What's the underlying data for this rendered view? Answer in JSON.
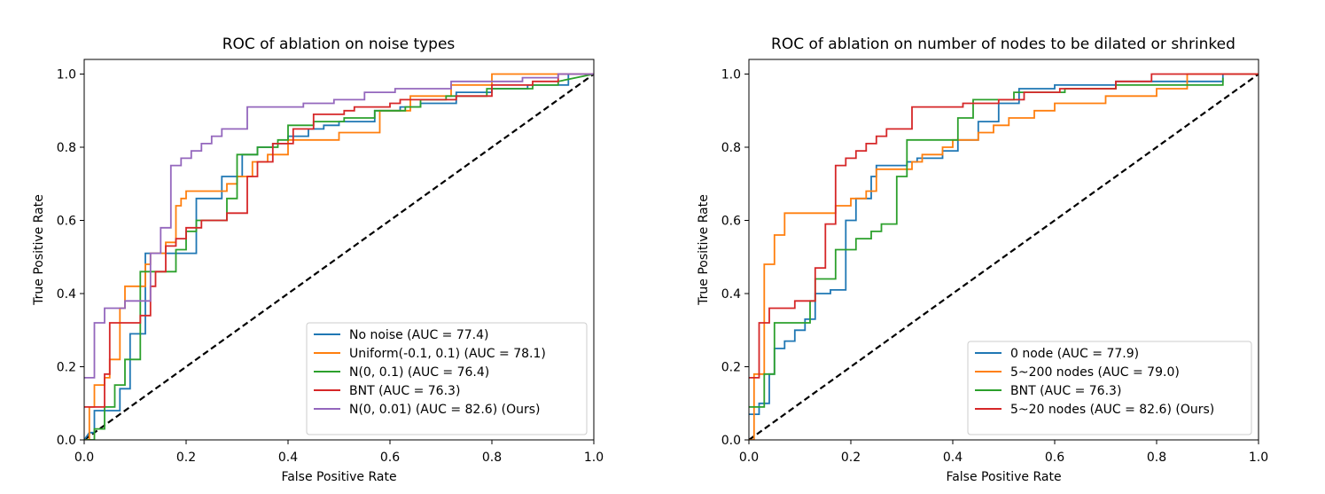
{
  "chart_data": [
    {
      "type": "line",
      "title": "ROC of ablation on noise types",
      "xlabel": "False Positive Rate",
      "ylabel": "True Positive Rate",
      "xlim": [
        0,
        1
      ],
      "ylim": [
        0,
        1.04
      ],
      "xticks": [
        "0.0",
        "0.2",
        "0.4",
        "0.6",
        "0.8",
        "1.0"
      ],
      "yticks": [
        "0.0",
        "0.2",
        "0.4",
        "0.6",
        "0.8",
        "1.0"
      ],
      "legend_position": "lower-right",
      "diagonal": {
        "style": "dashed",
        "color": "#000000",
        "x": [
          0,
          1
        ],
        "y": [
          0,
          1
        ]
      },
      "series": [
        {
          "name": "No noise (AUC = 77.4)",
          "color": "#1f77b4",
          "x": [
            0,
            0.01,
            0.02,
            0.02,
            0.07,
            0.07,
            0.09,
            0.09,
            0.12,
            0.12,
            0.15,
            0.15,
            0.18,
            0.18,
            0.22,
            0.22,
            0.27,
            0.27,
            0.31,
            0.31,
            0.34,
            0.34,
            0.37,
            0.37,
            0.4,
            0.4,
            0.44,
            0.44,
            0.47,
            0.47,
            0.5,
            0.5,
            0.57,
            0.57,
            0.62,
            0.62,
            0.66,
            0.66,
            0.73,
            0.73,
            0.8,
            0.8,
            0.87,
            0.87,
            0.93,
            0.93,
            0.95,
            0.95,
            1.0
          ],
          "y": [
            0,
            0.02,
            0.02,
            0.08,
            0.08,
            0.14,
            0.14,
            0.29,
            0.29,
            0.51,
            0.51,
            0.51,
            0.51,
            0.51,
            0.51,
            0.66,
            0.66,
            0.72,
            0.72,
            0.78,
            0.78,
            0.8,
            0.8,
            0.81,
            0.81,
            0.83,
            0.83,
            0.85,
            0.85,
            0.86,
            0.86,
            0.87,
            0.87,
            0.9,
            0.9,
            0.91,
            0.91,
            0.92,
            0.92,
            0.95,
            0.95,
            0.96,
            0.96,
            0.97,
            0.97,
            0.97,
            0.97,
            1.0,
            1.0
          ]
        },
        {
          "name": "Uniform(-0.1, 0.1) (AUC = 78.1)",
          "color": "#ff7f0e",
          "x": [
            0,
            0.01,
            0.01,
            0.02,
            0.02,
            0.04,
            0.04,
            0.05,
            0.05,
            0.07,
            0.07,
            0.08,
            0.08,
            0.12,
            0.12,
            0.13,
            0.13,
            0.16,
            0.16,
            0.18,
            0.18,
            0.19,
            0.19,
            0.2,
            0.2,
            0.28,
            0.28,
            0.3,
            0.3,
            0.33,
            0.33,
            0.36,
            0.36,
            0.4,
            0.4,
            0.44,
            0.44,
            0.5,
            0.5,
            0.53,
            0.53,
            0.58,
            0.58,
            0.64,
            0.64,
            0.72,
            0.72,
            0.8,
            0.8,
            1.0
          ],
          "y": [
            0,
            0,
            0.09,
            0.09,
            0.15,
            0.15,
            0.17,
            0.17,
            0.22,
            0.22,
            0.36,
            0.36,
            0.42,
            0.42,
            0.48,
            0.48,
            0.51,
            0.51,
            0.54,
            0.54,
            0.64,
            0.64,
            0.66,
            0.66,
            0.68,
            0.68,
            0.7,
            0.7,
            0.72,
            0.72,
            0.76,
            0.76,
            0.78,
            0.78,
            0.82,
            0.82,
            0.82,
            0.82,
            0.84,
            0.84,
            0.84,
            0.84,
            0.9,
            0.9,
            0.94,
            0.94,
            0.97,
            0.97,
            1.0,
            1.0
          ]
        },
        {
          "name": "N(0, 0.1) (AUC = 76.4)",
          "color": "#2ca02c",
          "x": [
            0,
            0.02,
            0.02,
            0.04,
            0.04,
            0.06,
            0.06,
            0.08,
            0.08,
            0.11,
            0.11,
            0.18,
            0.18,
            0.2,
            0.2,
            0.22,
            0.22,
            0.28,
            0.28,
            0.3,
            0.3,
            0.34,
            0.34,
            0.38,
            0.38,
            0.4,
            0.4,
            0.45,
            0.45,
            0.51,
            0.51,
            0.57,
            0.57,
            0.63,
            0.63,
            0.66,
            0.66,
            0.71,
            0.71,
            0.79,
            0.79,
            0.88,
            0.88,
            0.93,
            0.93,
            1.0
          ],
          "y": [
            0,
            0,
            0.03,
            0.03,
            0.09,
            0.09,
            0.15,
            0.15,
            0.22,
            0.22,
            0.46,
            0.46,
            0.52,
            0.52,
            0.57,
            0.57,
            0.6,
            0.6,
            0.66,
            0.66,
            0.78,
            0.78,
            0.8,
            0.8,
            0.82,
            0.82,
            0.86,
            0.86,
            0.87,
            0.87,
            0.88,
            0.88,
            0.9,
            0.9,
            0.91,
            0.91,
            0.93,
            0.93,
            0.94,
            0.94,
            0.96,
            0.96,
            0.97,
            0.97,
            0.98,
            1.0
          ]
        },
        {
          "name": "BNT (AUC = 76.3)",
          "color": "#d62728",
          "x": [
            0,
            0.02,
            0.02,
            0.04,
            0.04,
            0.05,
            0.05,
            0.09,
            0.09,
            0.11,
            0.11,
            0.13,
            0.13,
            0.14,
            0.14,
            0.16,
            0.16,
            0.18,
            0.18,
            0.2,
            0.2,
            0.23,
            0.23,
            0.28,
            0.28,
            0.32,
            0.32,
            0.34,
            0.34,
            0.37,
            0.37,
            0.41,
            0.41,
            0.45,
            0.45,
            0.51,
            0.51,
            0.53,
            0.53,
            0.6,
            0.6,
            0.62,
            0.62,
            0.67,
            0.67,
            0.73,
            0.73,
            0.77,
            0.77,
            0.8,
            0.8,
            0.88,
            0.88,
            0.93,
            0.93,
            1.0
          ],
          "y": [
            0.09,
            0.09,
            0.09,
            0.09,
            0.18,
            0.18,
            0.32,
            0.32,
            0.32,
            0.32,
            0.34,
            0.34,
            0.42,
            0.42,
            0.46,
            0.46,
            0.53,
            0.53,
            0.55,
            0.55,
            0.58,
            0.58,
            0.6,
            0.6,
            0.62,
            0.62,
            0.72,
            0.72,
            0.76,
            0.76,
            0.81,
            0.81,
            0.85,
            0.85,
            0.89,
            0.89,
            0.9,
            0.9,
            0.91,
            0.91,
            0.92,
            0.92,
            0.93,
            0.93,
            0.93,
            0.93,
            0.94,
            0.94,
            0.94,
            0.94,
            0.97,
            0.97,
            0.98,
            0.98,
            1.0,
            1.0
          ]
        },
        {
          "name": "N(0, 0.01) (AUC = 82.6) (Ours)",
          "color": "#9467bd",
          "x": [
            0,
            0.02,
            0.02,
            0.04,
            0.04,
            0.08,
            0.08,
            0.13,
            0.13,
            0.15,
            0.15,
            0.17,
            0.17,
            0.19,
            0.19,
            0.21,
            0.21,
            0.23,
            0.23,
            0.25,
            0.25,
            0.27,
            0.27,
            0.28,
            0.28,
            0.32,
            0.32,
            0.34,
            0.34,
            0.43,
            0.43,
            0.49,
            0.49,
            0.55,
            0.55,
            0.61,
            0.61,
            0.72,
            0.72,
            0.86,
            0.86,
            0.93,
            0.93,
            1.0
          ],
          "y": [
            0.17,
            0.17,
            0.32,
            0.32,
            0.36,
            0.36,
            0.38,
            0.38,
            0.51,
            0.51,
            0.58,
            0.58,
            0.75,
            0.75,
            0.77,
            0.77,
            0.79,
            0.79,
            0.81,
            0.81,
            0.83,
            0.83,
            0.85,
            0.85,
            0.85,
            0.85,
            0.91,
            0.91,
            0.91,
            0.91,
            0.92,
            0.92,
            0.93,
            0.93,
            0.95,
            0.95,
            0.96,
            0.96,
            0.98,
            0.98,
            0.99,
            0.99,
            1.0,
            1.0
          ]
        }
      ]
    },
    {
      "type": "line",
      "title": "ROC of ablation on number of nodes to be dilated or shrinked",
      "xlabel": "False Positive Rate",
      "ylabel": "True Positive Rate",
      "xlim": [
        0,
        1
      ],
      "ylim": [
        0,
        1.04
      ],
      "xticks": [
        "0.0",
        "0.2",
        "0.4",
        "0.6",
        "0.8",
        "1.0"
      ],
      "yticks": [
        "0.0",
        "0.2",
        "0.4",
        "0.6",
        "0.8",
        "1.0"
      ],
      "legend_position": "lower-right",
      "diagonal": {
        "style": "dashed",
        "color": "#000000",
        "x": [
          0,
          1
        ],
        "y": [
          0,
          1
        ]
      },
      "series": [
        {
          "name": "0 node (AUC = 77.9)",
          "color": "#1f77b4",
          "x": [
            0,
            0.02,
            0.02,
            0.04,
            0.04,
            0.05,
            0.05,
            0.07,
            0.07,
            0.09,
            0.09,
            0.11,
            0.11,
            0.13,
            0.13,
            0.16,
            0.16,
            0.19,
            0.19,
            0.21,
            0.21,
            0.24,
            0.24,
            0.25,
            0.25,
            0.31,
            0.31,
            0.33,
            0.33,
            0.38,
            0.38,
            0.41,
            0.41,
            0.45,
            0.45,
            0.49,
            0.49,
            0.53,
            0.53,
            0.6,
            0.6,
            0.65,
            0.65,
            0.72,
            0.72,
            0.93,
            0.93,
            1.0
          ],
          "y": [
            0.07,
            0.07,
            0.1,
            0.1,
            0.18,
            0.18,
            0.25,
            0.25,
            0.27,
            0.27,
            0.3,
            0.3,
            0.33,
            0.33,
            0.4,
            0.4,
            0.41,
            0.41,
            0.6,
            0.6,
            0.66,
            0.66,
            0.72,
            0.72,
            0.75,
            0.75,
            0.76,
            0.76,
            0.77,
            0.77,
            0.79,
            0.79,
            0.82,
            0.82,
            0.87,
            0.87,
            0.92,
            0.92,
            0.96,
            0.96,
            0.97,
            0.97,
            0.97,
            0.97,
            0.98,
            0.98,
            1.0,
            1.0
          ]
        },
        {
          "name": "5~200 nodes (AUC = 79.0)",
          "color": "#ff7f0e",
          "x": [
            0,
            0.01,
            0.01,
            0.03,
            0.03,
            0.05,
            0.05,
            0.07,
            0.07,
            0.13,
            0.13,
            0.17,
            0.17,
            0.2,
            0.2,
            0.22,
            0.22,
            0.23,
            0.23,
            0.25,
            0.25,
            0.27,
            0.27,
            0.32,
            0.32,
            0.34,
            0.34,
            0.38,
            0.38,
            0.4,
            0.4,
            0.45,
            0.45,
            0.48,
            0.48,
            0.51,
            0.51,
            0.56,
            0.56,
            0.6,
            0.6,
            0.7,
            0.7,
            0.8,
            0.8,
            0.86,
            0.86,
            1.0
          ],
          "y": [
            0,
            0,
            0.18,
            0.18,
            0.48,
            0.48,
            0.56,
            0.56,
            0.62,
            0.62,
            0.62,
            0.62,
            0.64,
            0.64,
            0.66,
            0.66,
            0.66,
            0.66,
            0.68,
            0.68,
            0.74,
            0.74,
            0.74,
            0.74,
            0.76,
            0.76,
            0.78,
            0.78,
            0.8,
            0.8,
            0.82,
            0.82,
            0.84,
            0.84,
            0.86,
            0.86,
            0.88,
            0.88,
            0.9,
            0.9,
            0.92,
            0.92,
            0.94,
            0.94,
            0.96,
            0.96,
            1.0,
            1.0
          ]
        },
        {
          "name": "BNT (AUC = 76.3)",
          "color": "#2ca02c",
          "x": [
            0,
            0.03,
            0.03,
            0.05,
            0.05,
            0.07,
            0.07,
            0.12,
            0.12,
            0.13,
            0.13,
            0.17,
            0.17,
            0.21,
            0.21,
            0.24,
            0.24,
            0.26,
            0.26,
            0.29,
            0.29,
            0.31,
            0.31,
            0.35,
            0.35,
            0.41,
            0.41,
            0.44,
            0.44,
            0.46,
            0.46,
            0.52,
            0.52,
            0.62,
            0.62,
            0.72,
            0.72,
            0.93,
            0.93
          ],
          "y": [
            0.09,
            0.09,
            0.18,
            0.18,
            0.32,
            0.32,
            0.32,
            0.32,
            0.38,
            0.38,
            0.44,
            0.44,
            0.52,
            0.52,
            0.55,
            0.55,
            0.57,
            0.57,
            0.59,
            0.59,
            0.72,
            0.72,
            0.82,
            0.82,
            0.82,
            0.82,
            0.88,
            0.88,
            0.93,
            0.93,
            0.93,
            0.93,
            0.95,
            0.95,
            0.96,
            0.96,
            0.97,
            0.97,
            0.99
          ]
        },
        {
          "name": "5~20 nodes (AUC = 82.6) (Ours)",
          "color": "#d62728",
          "x": [
            0,
            0.02,
            0.02,
            0.04,
            0.04,
            0.09,
            0.09,
            0.13,
            0.13,
            0.15,
            0.15,
            0.17,
            0.17,
            0.19,
            0.19,
            0.21,
            0.21,
            0.23,
            0.23,
            0.25,
            0.25,
            0.27,
            0.27,
            0.29,
            0.29,
            0.32,
            0.32,
            0.38,
            0.38,
            0.42,
            0.42,
            0.49,
            0.49,
            0.54,
            0.54,
            0.61,
            0.61,
            0.72,
            0.72,
            0.79,
            0.79,
            1.0
          ],
          "y": [
            0.17,
            0.17,
            0.32,
            0.32,
            0.36,
            0.36,
            0.38,
            0.38,
            0.47,
            0.47,
            0.59,
            0.59,
            0.75,
            0.75,
            0.77,
            0.77,
            0.79,
            0.79,
            0.81,
            0.81,
            0.83,
            0.83,
            0.85,
            0.85,
            0.85,
            0.85,
            0.91,
            0.91,
            0.91,
            0.91,
            0.92,
            0.92,
            0.93,
            0.93,
            0.95,
            0.95,
            0.96,
            0.96,
            0.98,
            0.98,
            1.0,
            1.0
          ]
        }
      ]
    }
  ]
}
